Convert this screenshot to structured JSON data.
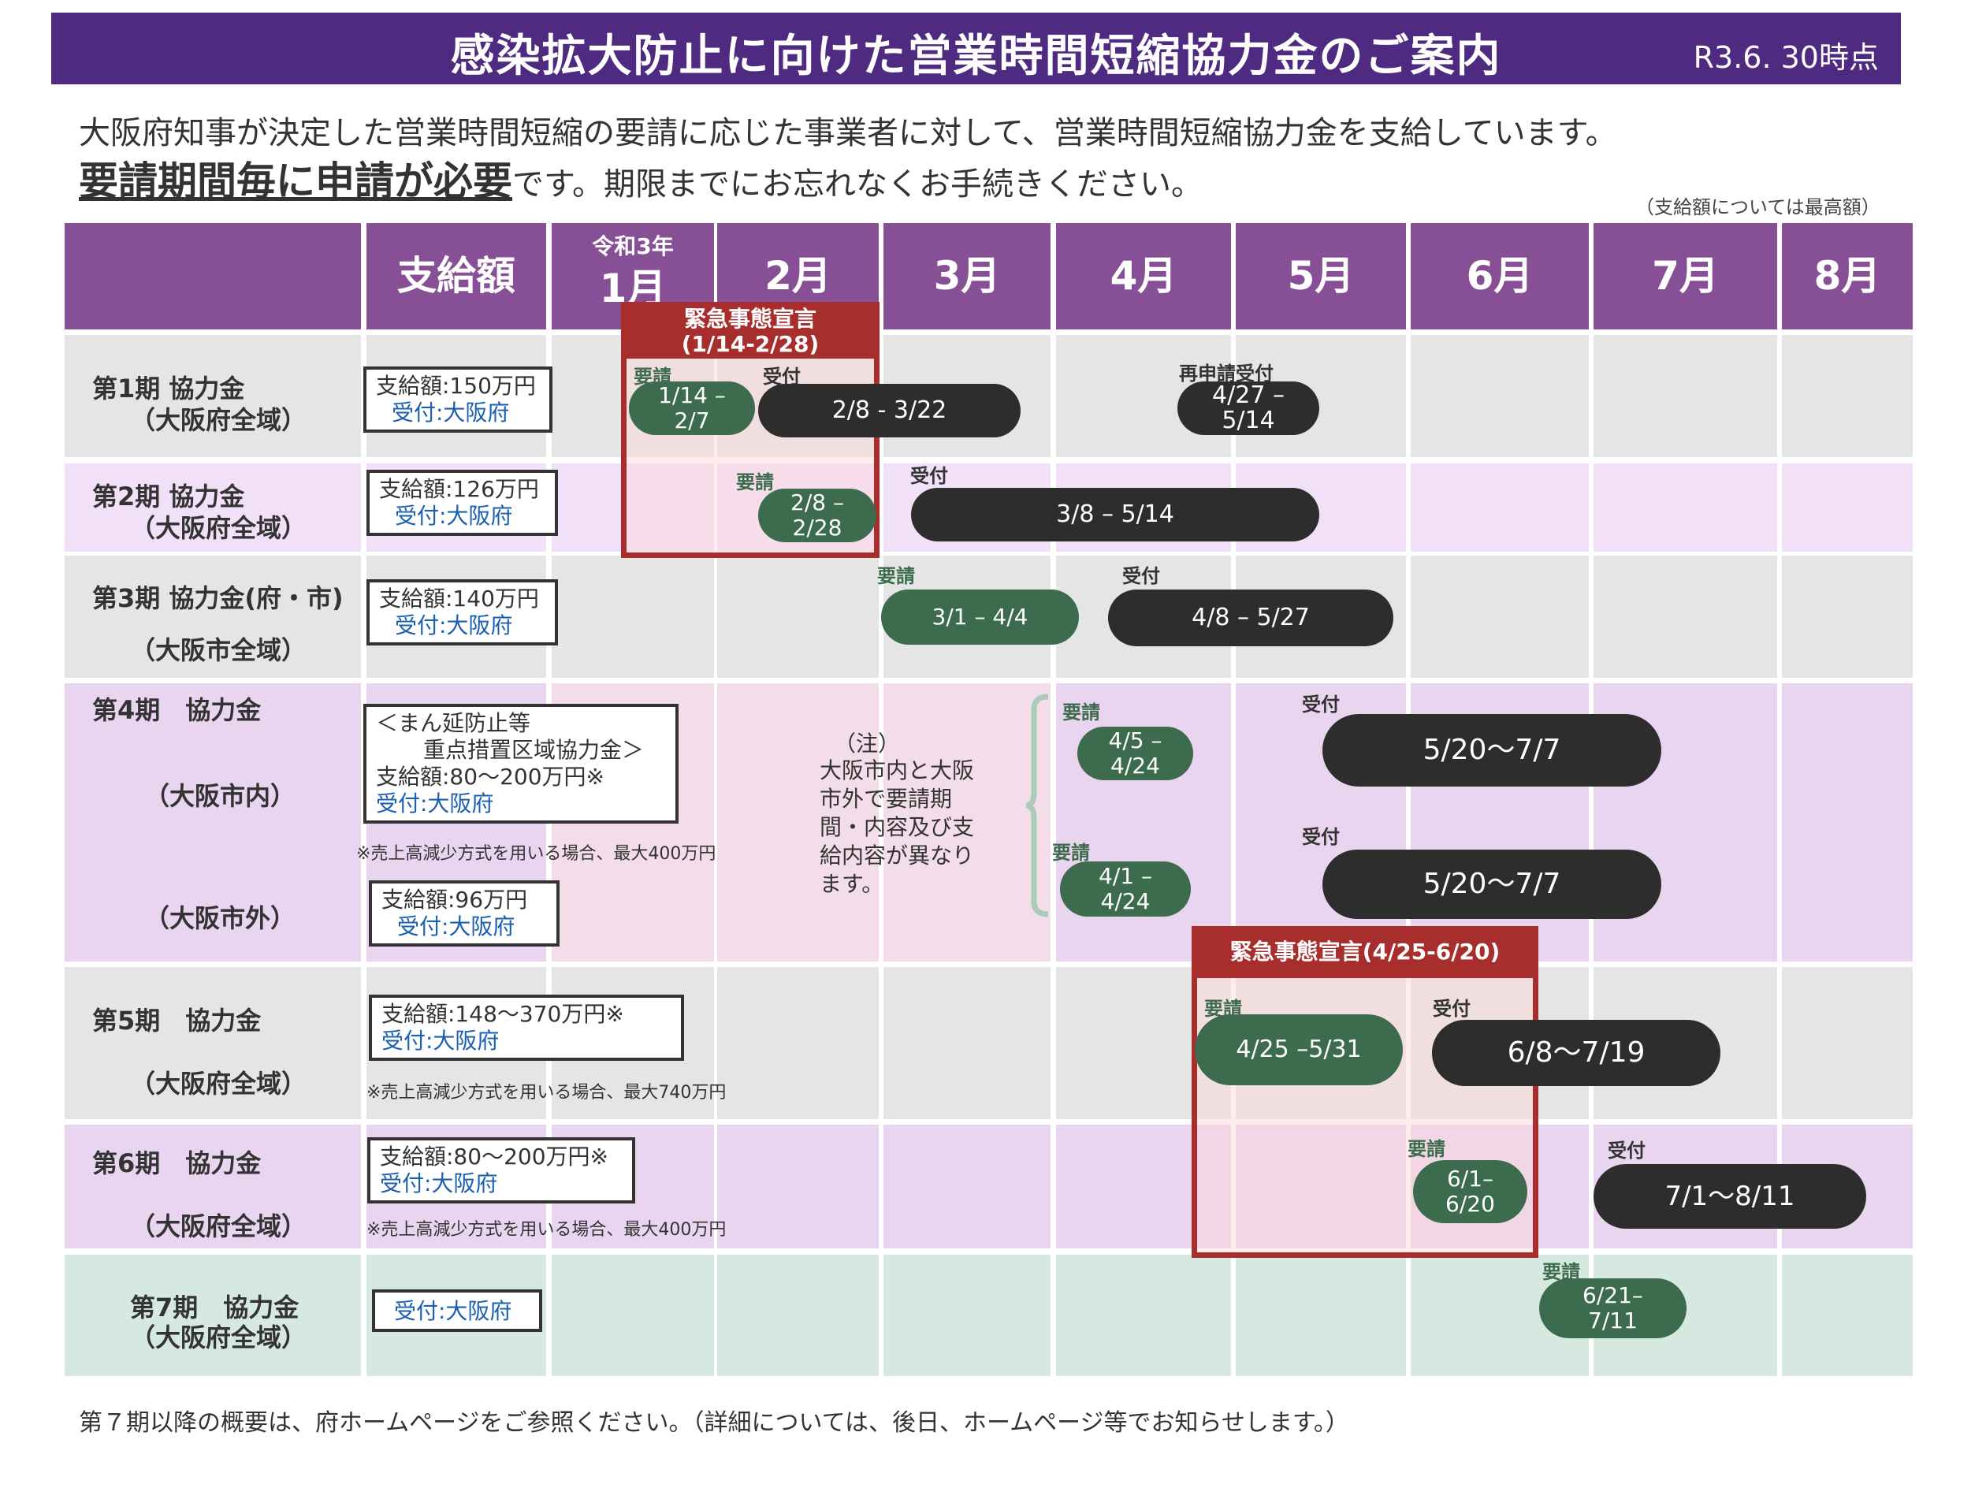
{
  "banner": {
    "title": "感染拡大防止に向けた営業時間短縮協力金のご案内",
    "date": "R3.6. 30時点",
    "bg": "#4e2a80"
  },
  "intro": {
    "line1": "大阪府知事が決定した営業時間短縮の要請に応じた事業者に対して、営業時間短縮協力金を支給しています。",
    "line2_emph": "要請期間毎に申請が必要",
    "line2_rest": "です。期限までにお忘れなくお手続きください。"
  },
  "note_top": "（支給額については最高額）",
  "header": {
    "amount": "支給額",
    "reiwa": "令和3年",
    "months": [
      "1月",
      "2月",
      "3月",
      "4月",
      "5月",
      "6月",
      "7月",
      "8月"
    ]
  },
  "rows": {
    "p1": {
      "name": "第1期 協力金",
      "area": "（大阪府全域）",
      "box_amount": "支給額:150万円",
      "box_recv": "受付:大阪府"
    },
    "p2": {
      "name": "第2期 協力金",
      "area": "（大阪府全域）",
      "box_amount": "支給額:126万円",
      "box_recv": "受付:大阪府"
    },
    "p3": {
      "name": "第3期 協力金(府・市)",
      "area": "（大阪市全域）",
      "box_amount": "支給額:140万円",
      "box_recv": "受付:大阪府"
    },
    "p4": {
      "name": "第4期　協力金",
      "area_in": "（大阪市内）",
      "area_out": "（大阪市外）",
      "box1_l1": "＜まん延防止等",
      "box1_l2": "重点措置区域協力金＞",
      "box1_amount": "支給額:80～200万円※",
      "box1_recv": "受付:大阪府",
      "note": "※売上高減少方式を用いる場合、最大400万円",
      "box2_amount": "支給額:96万円",
      "box2_recv": "受付:大阪府"
    },
    "p5": {
      "name": "第5期　協力金",
      "area": "（大阪府全域）",
      "box_amount": "支給額:148～370万円※",
      "box_recv": "受付:大阪府",
      "note": "※売上高減少方式を用いる場合、最大740万円"
    },
    "p6": {
      "name": "第6期　協力金",
      "area": "（大阪府全域）",
      "box_amount": "支給額:80～200万円※",
      "box_recv": "受付:大阪府",
      "note": "※売上高減少方式を用いる場合、最大400万円"
    },
    "p7": {
      "name": "第7期　協力金",
      "area": "（大阪府全域）",
      "box_recv": "受付:大阪府"
    }
  },
  "labels": {
    "request": "要請",
    "reception": "受付",
    "re_reception": "再申請受付"
  },
  "emergency1": {
    "title": "緊急事態宣言",
    "range": "(1/14-2/28)"
  },
  "emergency2": {
    "title": "緊急事態宣言(4/25-6/20)"
  },
  "pills": {
    "p1_req": [
      "1/14 –",
      "2/7"
    ],
    "p1_recv": "2/8 - 3/22",
    "p1_rerecv": [
      "4/27 –",
      "5/14"
    ],
    "p2_req": [
      "2/8 –",
      "2/28"
    ],
    "p2_recv": "3/8 – 5/14",
    "p3_req": "3/1 – 4/4",
    "p3_recv": "4/8 – 5/27",
    "p4_in_req": [
      "4/5 –",
      "4/24"
    ],
    "p4_in_recv": "5/20～7/7",
    "p4_out_req": [
      "4/1 –",
      "4/24"
    ],
    "p4_out_recv": "5/20～7/7",
    "p5_req": "4/25 –5/31",
    "p5_recv": "6/8～7/19",
    "p6_req": [
      "6/1–",
      "6/20"
    ],
    "p6_recv": "7/1～8/11",
    "p7_req": [
      "6/21–",
      "7/11"
    ]
  },
  "p4_note": {
    "head": "（注）",
    "lines": [
      "大阪市内と大阪",
      "市外で要請期",
      "間・内容及び支",
      "給内容が異なり",
      "ます。"
    ]
  },
  "footer": "第７期以降の概要は、府ホームページをご参照ください。（詳細については、後日、ホームページ等でお知らせします。）",
  "colors": {
    "header": "#874f95",
    "request_pill": "#3d6b4e",
    "reception_pill": "#2d2d2d",
    "emergency": "#a82e2e",
    "link": "#1a5fb0"
  }
}
